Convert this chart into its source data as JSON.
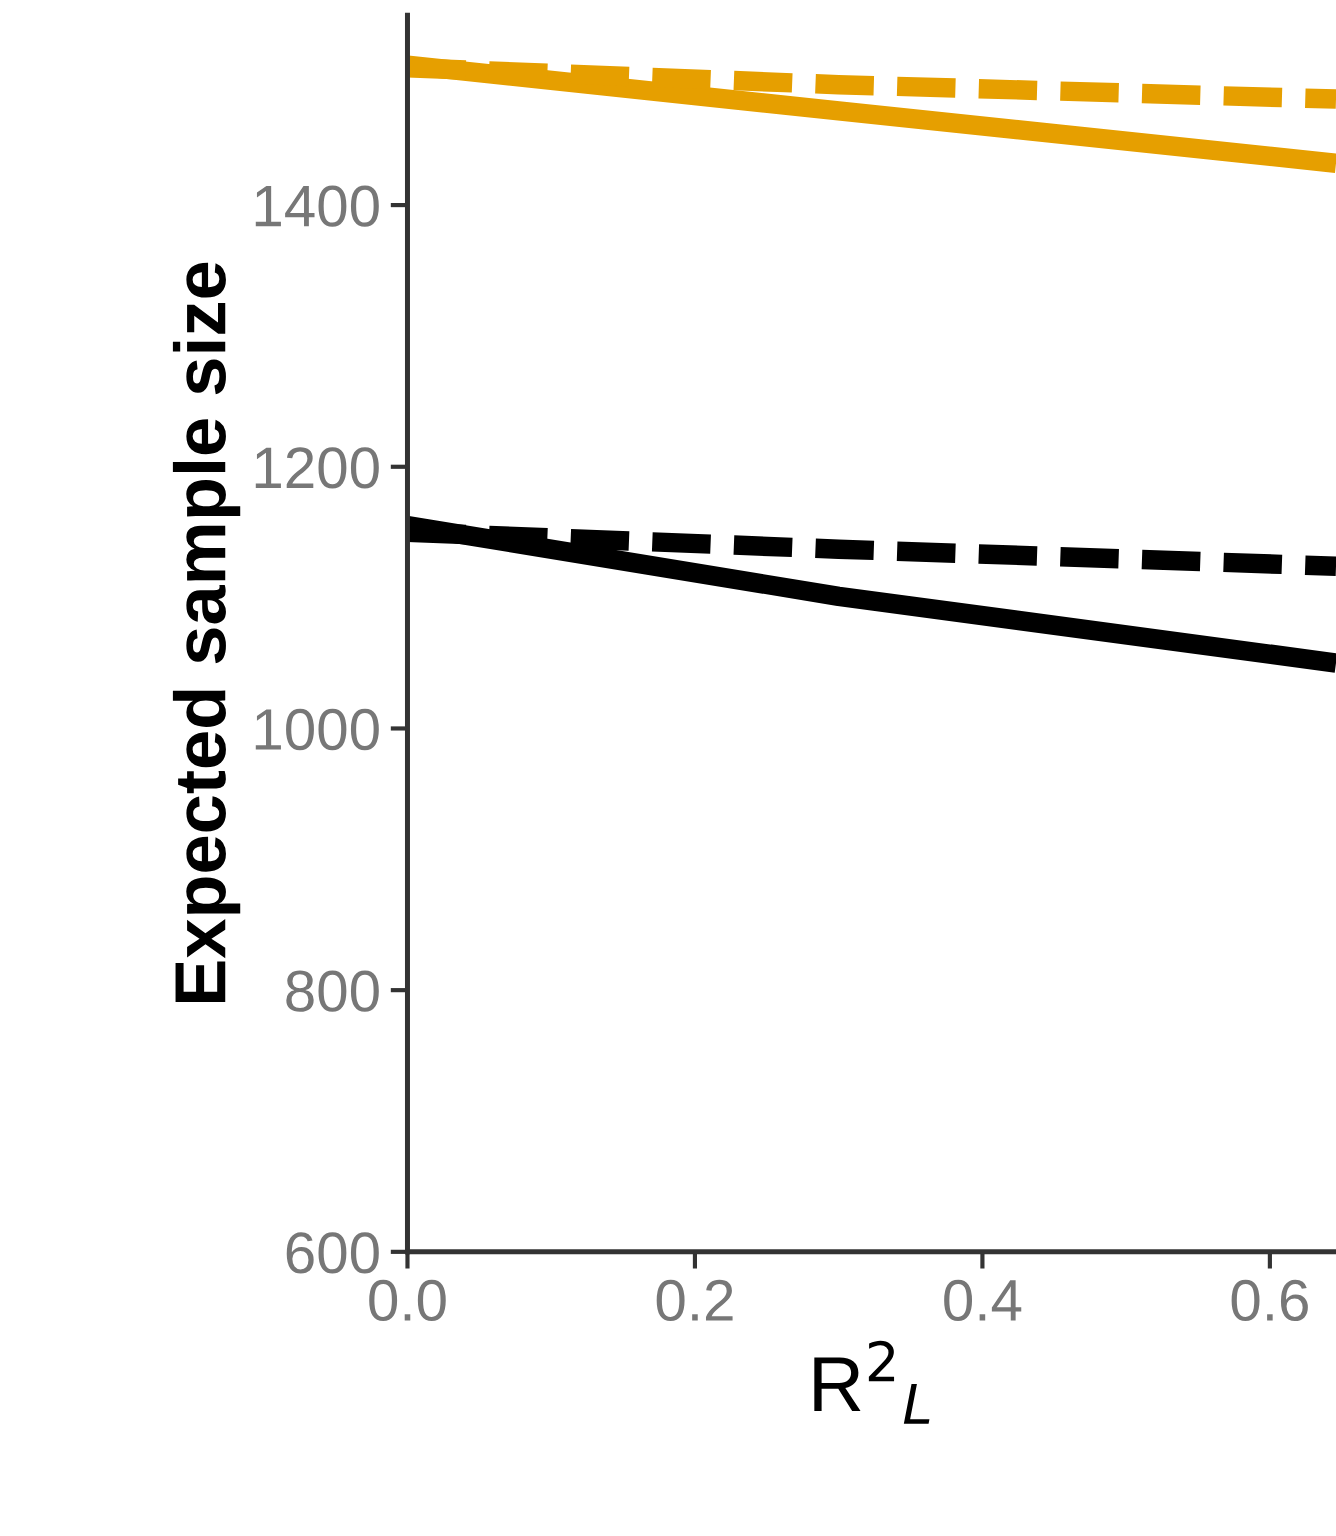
{
  "chart_data": {
    "type": "line",
    "xlabel": "R$^{2}$$_{L}$",
    "ylabel": "Expected sample size",
    "x": [
      0.0,
      0.3,
      0.646
    ],
    "series": [
      {
        "color": "#e69f00",
        "values": [
          1507,
          1472,
          1432
        ],
        "line_style": "solid"
      },
      {
        "color": "#e69f00",
        "values": [
          1505,
          1492,
          1481
        ],
        "line_style": "dashed"
      },
      {
        "color": "#000000",
        "values": [
          1155,
          1101,
          1050
        ],
        "line_style": "solid"
      },
      {
        "color": "#000000",
        "values": [
          1150,
          1137,
          1124
        ],
        "line_style": "dashed"
      }
    ],
    "xlim": [
      0,
      0.646
    ],
    "xticks": [
      {
        "value": 0,
        "label": "0.0"
      },
      0.2,
      0.4,
      0.6
    ],
    "ylim": [
      600,
      1545
    ],
    "yticks": [
      600,
      800,
      1000,
      1200,
      1400
    ],
    "grid": false,
    "marker": "none"
  }
}
